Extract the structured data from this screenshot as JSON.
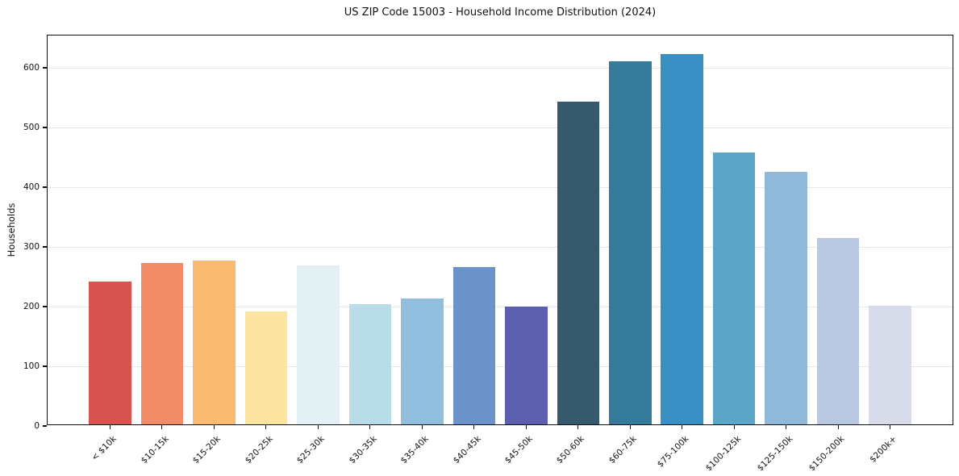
{
  "title": "US ZIP Code 15003 - Household Income Distribution (2024)",
  "chart_data": {
    "type": "bar",
    "title": "US ZIP Code 15003 - Household Income Distribution (2024)",
    "xlabel": "",
    "ylabel": "Households",
    "categories": [
      "< $10k",
      "$10-15k",
      "$15-20k",
      "$20-25k",
      "$25-30k",
      "$30-35k",
      "$35-40k",
      "$40-45k",
      "$45-50k",
      "$50-60k",
      "$60-75k",
      "$75-100k",
      "$100-125k",
      "$125-150k",
      "$150-200k",
      "$200k+"
    ],
    "values": [
      239,
      270,
      274,
      189,
      266,
      201,
      211,
      263,
      197,
      540,
      608,
      620,
      455,
      423,
      312,
      199
    ],
    "bar_colors": [
      "#d6544f",
      "#f18b68",
      "#f9bb72",
      "#fce5a0",
      "#e4f1f4",
      "#b9dce9",
      "#92bedd",
      "#6b93ca",
      "#5c5fad",
      "#36596e",
      "#35799b",
      "#3990c4",
      "#5aa5c8",
      "#90b9d9",
      "#bac9e2",
      "#d8dbe9"
    ],
    "y_ticks": [
      0,
      100,
      200,
      300,
      400,
      500,
      600
    ],
    "ylim": [
      0,
      654
    ],
    "grid": "horizontal-only",
    "gridline_color": "#e7e7e7",
    "spine_color": "#111111",
    "background_color": "#ffffff",
    "legend": "none"
  }
}
